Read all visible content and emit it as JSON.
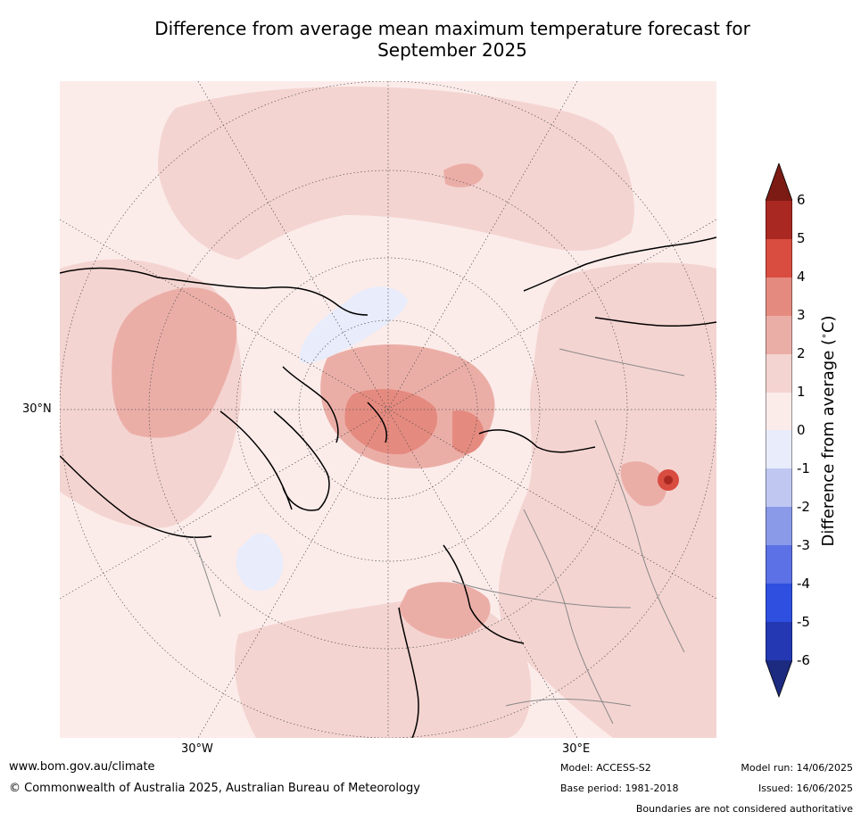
{
  "title_line1": "Difference from average mean maximum temperature forecast for",
  "title_line2": "September 2025",
  "labels": {
    "lat_30n": "30°N",
    "lon_30w": "30°W",
    "lon_30e": "30°E"
  },
  "colorbar": {
    "label": "Difference from average (°C)",
    "label_text": "Difference from average (",
    "label_unit": "C)",
    "ticks": [
      "6",
      "5",
      "4",
      "3",
      "2",
      "1",
      "0",
      "-1",
      "-2",
      "-3",
      "-4",
      "-5",
      "-6"
    ],
    "colors": {
      "gt6": "#7b1b14",
      "5_6": "#a92822",
      "4_5": "#d94c40",
      "3_4": "#e58a7f",
      "2_3": "#ebaea7",
      "1_2": "#f4d4d1",
      "0_1": "#fbecea",
      "m1_0": "#e8ecfb",
      "m2_m1": "#c0c8f2",
      "m3_m2": "#8a9ae9",
      "m4_m3": "#5b71e5",
      "m5_m4": "#2f4fe0",
      "m6_m5": "#2338b2",
      "lt_m6": "#1c2a80"
    }
  },
  "footer": {
    "website": "www.bom.gov.au/climate",
    "copyright": "© Commonwealth of Australia 2025, Australian Bureau of Meteorology",
    "model": "Model: ACCESS-S2",
    "base_period": "Base period: 1981-2018",
    "model_run": "Model run: 14/06/2025",
    "issued": "Issued: 16/06/2025",
    "disclaimer": "Boundaries are not considered authoritative"
  }
}
